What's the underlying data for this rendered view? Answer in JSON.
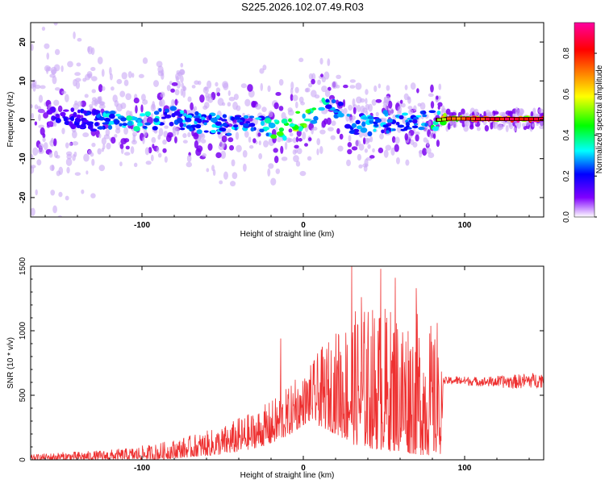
{
  "title": "S225.2026.102.07.49.R03",
  "chart_data": [
    {
      "type": "heatmap",
      "name": "spectrogram",
      "title": "S225.2026.102.07.49.R03",
      "xlabel": "Height of straight line (km)",
      "ylabel": "Frequency (Hz)",
      "xlim": [
        -169,
        149
      ],
      "ylim": [
        -25,
        25
      ],
      "x_ticks": [
        "-100",
        "0",
        "100"
      ],
      "y_ticks": [
        "-20",
        "-10",
        "0",
        "10",
        "20"
      ],
      "colorbar": {
        "label": "Normalized spectral amplitude",
        "range": [
          0.0,
          0.95
        ],
        "ticks": [
          "0.0",
          "0.2",
          "0.4",
          "0.6",
          "0.8"
        ],
        "colors": [
          "#ffffff",
          "#7f00ff",
          "#0000ff",
          "#00ffff",
          "#00ff00",
          "#ffff00",
          "#ff8000",
          "#ff0000",
          "#ff00a0"
        ]
      },
      "ridge": {
        "x": [
          -165,
          -150,
          -135,
          -120,
          -100,
          -80,
          -60,
          -45,
          -35,
          -25,
          -18,
          -12,
          -5,
          0,
          5,
          10,
          15,
          18,
          25,
          30,
          40,
          50,
          60,
          70,
          80,
          85,
          90,
          100,
          110,
          120,
          130,
          140,
          149
        ],
        "frequency": [
          0.5,
          0.5,
          0.0,
          -0.5,
          0.0,
          0.5,
          -1.0,
          -1.5,
          -0.5,
          -1.0,
          -2.0,
          -2.5,
          -0.5,
          0.5,
          1.0,
          3.0,
          5.0,
          4.5,
          1.0,
          -1.0,
          -1.5,
          -0.5,
          -1.0,
          -0.5,
          0.0,
          0.0,
          0.3,
          0.3,
          0.2,
          0.2,
          0.2,
          0.2,
          0.2
        ],
        "amplitude": [
          0.05,
          0.2,
          0.2,
          0.35,
          0.35,
          0.3,
          0.3,
          0.3,
          0.3,
          0.3,
          0.45,
          0.5,
          0.5,
          0.55,
          0.45,
          0.4,
          0.35,
          0.35,
          0.3,
          0.3,
          0.3,
          0.3,
          0.3,
          0.3,
          0.4,
          0.6,
          0.75,
          0.85,
          0.9,
          0.9,
          0.9,
          0.9,
          0.9
        ]
      }
    },
    {
      "type": "line",
      "name": "snr",
      "xlabel": "Height of straight line (km)",
      "ylabel": "SNR (10 * v/v)",
      "xlim": [
        -169,
        149
      ],
      "ylim": [
        0,
        1500
      ],
      "x_ticks": [
        "-100",
        "0",
        "100"
      ],
      "y_ticks": [
        "0",
        "500",
        "1000",
        "1500"
      ],
      "color": "#ee3030",
      "envelope": {
        "x": [
          -169,
          -150,
          -130,
          -110,
          -90,
          -70,
          -50,
          -40,
          -30,
          -20,
          -10,
          -5,
          0,
          5,
          10,
          20,
          30,
          40,
          50,
          60,
          70,
          80,
          85,
          87,
          95,
          110,
          130,
          149
        ],
        "low": [
          0,
          0,
          0,
          0,
          0,
          20,
          40,
          60,
          90,
          120,
          180,
          220,
          270,
          300,
          260,
          200,
          120,
          90,
          70,
          60,
          40,
          30,
          40,
          560,
          560,
          550,
          530,
          540
        ],
        "high": [
          40,
          60,
          70,
          90,
          130,
          190,
          260,
          330,
          380,
          460,
          560,
          600,
          650,
          750,
          850,
          1000,
          1150,
          1200,
          1200,
          1180,
          1150,
          1050,
          780,
          640,
          650,
          640,
          660,
          680
        ]
      },
      "peaks": [
        {
          "x": -14,
          "y": 940
        },
        {
          "x": -5,
          "y": 620
        },
        {
          "x": 30,
          "y": 1500
        },
        {
          "x": 48,
          "y": 1480
        },
        {
          "x": 36,
          "y": 1260
        },
        {
          "x": 57,
          "y": 1410
        },
        {
          "x": 70,
          "y": 1330
        },
        {
          "x": 83,
          "y": 1060
        },
        {
          "x": 22,
          "y": 960
        }
      ]
    }
  ]
}
